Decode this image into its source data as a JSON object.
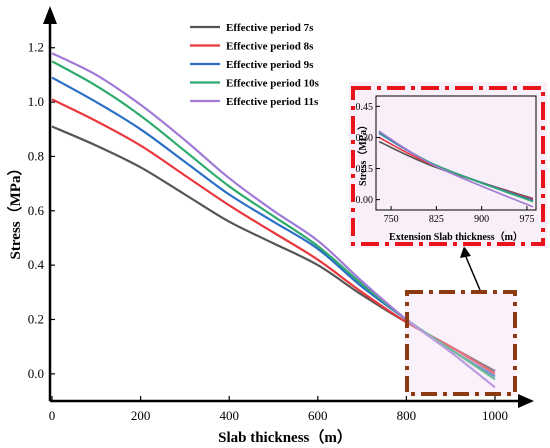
{
  "chart_data": [
    {
      "type": "line",
      "title": "",
      "xlabel": "Slab thickness（m）",
      "ylabel": "Stress（MPa）",
      "xlim": [
        0,
        1000
      ],
      "ylim": [
        -0.1,
        1.28
      ],
      "xticks": [
        "0",
        "200",
        "400",
        "600",
        "800",
        "1000"
      ],
      "yticks": [
        "0.0",
        "0.2",
        "0.4",
        "0.6",
        "0.8",
        "1.0",
        "1.2"
      ],
      "legend_position": "top-center",
      "series": [
        {
          "name": "Effective period 7s",
          "color": "#555555",
          "x": [
            0,
            100,
            200,
            300,
            400,
            500,
            600,
            700,
            800,
            900,
            1000
          ],
          "y": [
            0.91,
            0.84,
            0.76,
            0.66,
            0.56,
            0.48,
            0.4,
            0.29,
            0.19,
            0.1,
            0.01
          ]
        },
        {
          "name": "Effective period 8s",
          "color": "#e8383d",
          "x": [
            0,
            100,
            200,
            300,
            400,
            500,
            600,
            700,
            800,
            900,
            1000
          ],
          "y": [
            1.01,
            0.93,
            0.84,
            0.73,
            0.62,
            0.52,
            0.42,
            0.3,
            0.19,
            0.1,
            0.0
          ]
        },
        {
          "name": "Effective period 9s",
          "color": "#2b6fc7",
          "x": [
            0,
            100,
            200,
            300,
            400,
            500,
            600,
            700,
            800,
            900,
            1000
          ],
          "y": [
            1.09,
            1.0,
            0.9,
            0.78,
            0.66,
            0.56,
            0.46,
            0.32,
            0.2,
            0.09,
            -0.01
          ]
        },
        {
          "name": "Effective period 10s",
          "color": "#2eab6c",
          "x": [
            0,
            100,
            200,
            300,
            400,
            500,
            600,
            700,
            800,
            900,
            1000
          ],
          "y": [
            1.15,
            1.06,
            0.95,
            0.82,
            0.69,
            0.58,
            0.47,
            0.33,
            0.2,
            0.09,
            -0.02
          ]
        },
        {
          "name": "Effective period 11s",
          "color": "#a07ad6",
          "x": [
            0,
            100,
            200,
            300,
            400,
            500,
            600,
            700,
            800,
            900,
            1000
          ],
          "y": [
            1.18,
            1.1,
            0.99,
            0.86,
            0.72,
            0.6,
            0.49,
            0.34,
            0.2,
            0.08,
            -0.05
          ]
        }
      ]
    },
    {
      "type": "line",
      "title": "",
      "xlabel": "Extension Slab thickness（m）",
      "ylabel": "Stress（MPa）",
      "xlim": [
        725,
        990
      ],
      "ylim": [
        -0.05,
        0.5
      ],
      "xticks": [
        "750",
        "825",
        "900",
        "975"
      ],
      "yticks": [
        "0.00",
        "0.15",
        "0.30",
        "0.45"
      ],
      "series": [
        {
          "name": "Effective period 7s",
          "color": "#555555",
          "x": [
            730,
            825,
            985
          ],
          "y": [
            0.28,
            0.155,
            0.005
          ]
        },
        {
          "name": "Effective period 8s",
          "color": "#e8383d",
          "x": [
            730,
            825,
            985
          ],
          "y": [
            0.3,
            0.16,
            0.0
          ]
        },
        {
          "name": "Effective period 9s",
          "color": "#2b6fc7",
          "x": [
            730,
            825,
            985
          ],
          "y": [
            0.32,
            0.165,
            -0.005
          ]
        },
        {
          "name": "Effective period 10s",
          "color": "#2eab6c",
          "x": [
            730,
            825,
            985
          ],
          "y": [
            0.325,
            0.165,
            -0.01
          ]
        },
        {
          "name": "Effective period 11s",
          "color": "#a07ad6",
          "x": [
            730,
            825,
            985
          ],
          "y": [
            0.33,
            0.16,
            -0.035
          ]
        }
      ]
    }
  ]
}
